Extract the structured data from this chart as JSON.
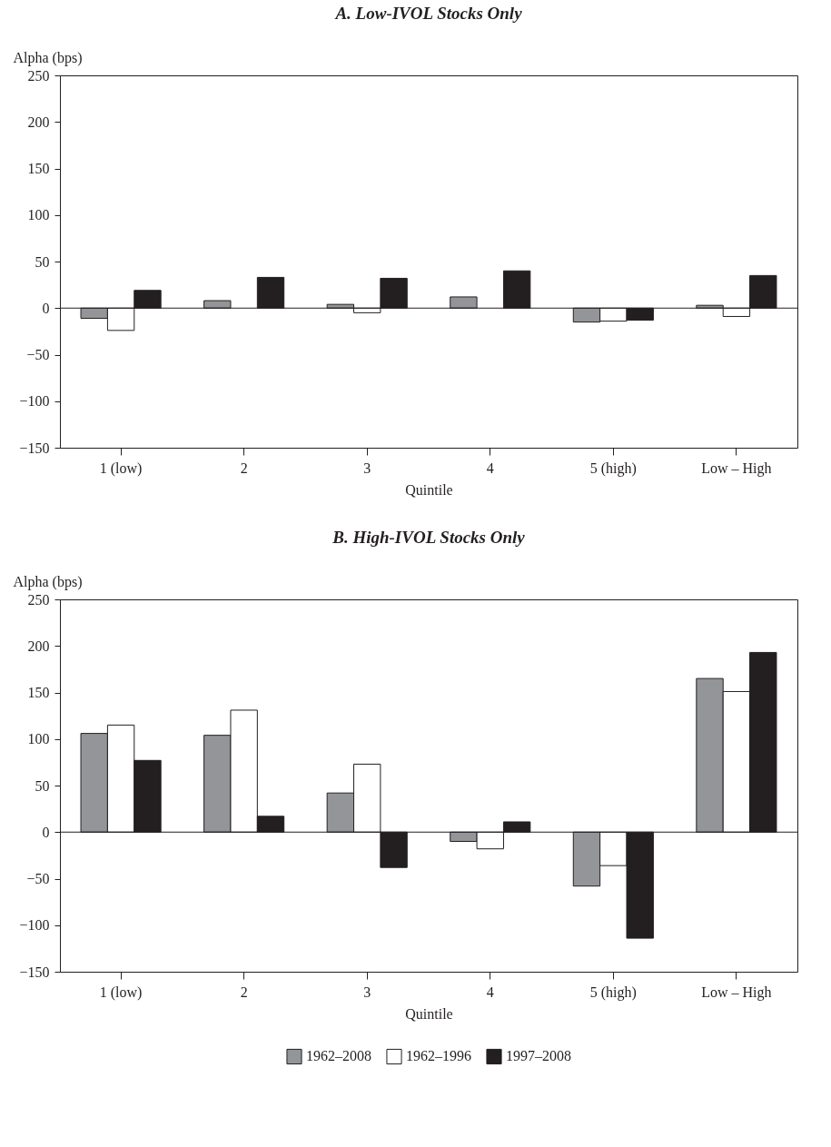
{
  "chart_data": [
    {
      "type": "bar",
      "title": "A. Low-IVOL Stocks Only",
      "xlabel": "Quintile",
      "ylabel": "Alpha (bps)",
      "categories": [
        "1 (low)",
        "2",
        "3",
        "4",
        "5 (high)",
        "Low – High"
      ],
      "ylim": [
        -150,
        250
      ],
      "yticks": [
        -150,
        -100,
        -50,
        0,
        50,
        100,
        150,
        200,
        250
      ],
      "grid": false,
      "legend": false,
      "ref_lines": [
        {
          "axis": "y",
          "value": 0
        }
      ],
      "series": [
        {
          "color": "#939598",
          "values": [
            -11,
            8,
            4,
            12,
            -15,
            3
          ]
        },
        {
          "color": "#ffffff",
          "values": [
            -24,
            null,
            -5,
            null,
            -14,
            -9
          ]
        },
        {
          "color": "#231f20",
          "values": [
            19,
            33,
            32,
            40,
            -13,
            35
          ]
        }
      ]
    },
    {
      "type": "bar",
      "title": "B. High-IVOL Stocks Only",
      "xlabel": "Quintile",
      "ylabel": "Alpha (bps)",
      "categories": [
        "1 (low)",
        "2",
        "3",
        "4",
        "5 (high)",
        "Low – High"
      ],
      "ylim": [
        -150,
        250
      ],
      "yticks": [
        -150,
        -100,
        -50,
        0,
        50,
        100,
        150,
        200,
        250
      ],
      "grid": false,
      "legend": "bottom",
      "ref_lines": [
        {
          "axis": "y",
          "value": 0
        }
      ],
      "series": [
        {
          "name": "1962–2008",
          "color": "#939598",
          "values": [
            106,
            104,
            42,
            -10,
            -58,
            165
          ]
        },
        {
          "name": "1962–1996",
          "color": "#ffffff",
          "values": [
            115,
            131,
            73,
            -18,
            -36,
            151
          ]
        },
        {
          "name": "1997–2008",
          "color": "#231f20",
          "values": [
            77,
            17,
            -38,
            11,
            -114,
            193
          ]
        }
      ]
    }
  ]
}
